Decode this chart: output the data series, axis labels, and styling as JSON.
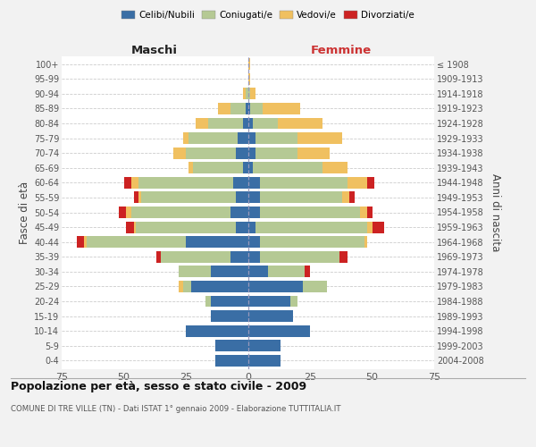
{
  "age_groups": [
    "0-4",
    "5-9",
    "10-14",
    "15-19",
    "20-24",
    "25-29",
    "30-34",
    "35-39",
    "40-44",
    "45-49",
    "50-54",
    "55-59",
    "60-64",
    "65-69",
    "70-74",
    "75-79",
    "80-84",
    "85-89",
    "90-94",
    "95-99",
    "100+"
  ],
  "birth_years": [
    "2004-2008",
    "1999-2003",
    "1994-1998",
    "1989-1993",
    "1984-1988",
    "1979-1983",
    "1974-1978",
    "1969-1973",
    "1964-1968",
    "1959-1963",
    "1954-1958",
    "1949-1953",
    "1944-1948",
    "1939-1943",
    "1934-1938",
    "1929-1933",
    "1924-1928",
    "1919-1923",
    "1914-1918",
    "1909-1913",
    "≤ 1908"
  ],
  "colors": {
    "celibe": "#3a6ea5",
    "coniugato": "#b5c994",
    "vedovo": "#f0c060",
    "divorziato": "#cc2222"
  },
  "maschi": {
    "celibe": [
      13,
      13,
      25,
      15,
      15,
      23,
      15,
      7,
      25,
      5,
      7,
      5,
      6,
      2,
      5,
      4,
      2,
      1,
      0,
      0,
      0
    ],
    "coniugato": [
      0,
      0,
      0,
      0,
      2,
      3,
      13,
      28,
      40,
      40,
      40,
      38,
      38,
      20,
      20,
      20,
      14,
      6,
      1,
      0,
      0
    ],
    "vedovo": [
      0,
      0,
      0,
      0,
      0,
      2,
      0,
      0,
      1,
      1,
      2,
      1,
      3,
      2,
      5,
      2,
      5,
      5,
      1,
      0,
      0
    ],
    "divorziato": [
      0,
      0,
      0,
      0,
      0,
      0,
      0,
      2,
      3,
      3,
      3,
      2,
      3,
      0,
      0,
      0,
      0,
      0,
      0,
      0,
      0
    ]
  },
  "femmine": {
    "celibe": [
      13,
      13,
      25,
      18,
      17,
      22,
      8,
      5,
      5,
      3,
      5,
      5,
      5,
      2,
      3,
      3,
      2,
      1,
      0,
      0,
      0
    ],
    "coniugato": [
      0,
      0,
      0,
      0,
      3,
      10,
      15,
      32,
      42,
      45,
      40,
      33,
      35,
      28,
      17,
      17,
      10,
      5,
      1,
      0,
      0
    ],
    "vedovo": [
      0,
      0,
      0,
      0,
      0,
      0,
      0,
      0,
      1,
      2,
      3,
      3,
      8,
      10,
      13,
      18,
      18,
      15,
      2,
      1,
      1
    ],
    "divorziato": [
      0,
      0,
      0,
      0,
      0,
      0,
      2,
      3,
      0,
      5,
      2,
      2,
      3,
      0,
      0,
      0,
      0,
      0,
      0,
      0,
      0
    ]
  },
  "xlim": 75,
  "title": "Popolazione per età, sesso e stato civile - 2009",
  "subtitle": "COMUNE DI TRE VILLE (TN) - Dati ISTAT 1° gennaio 2009 - Elaborazione TUTTITALIA.IT",
  "ylabel_left": "Fasce di età",
  "ylabel_right": "Anni di nascita",
  "label_maschi": "Maschi",
  "label_femmine": "Femmine",
  "legend_labels": [
    "Celibi/Nubili",
    "Coniugati/e",
    "Vedovi/e",
    "Divorziati/e"
  ],
  "bg_color": "#f2f2f2",
  "plot_bg": "#ffffff"
}
